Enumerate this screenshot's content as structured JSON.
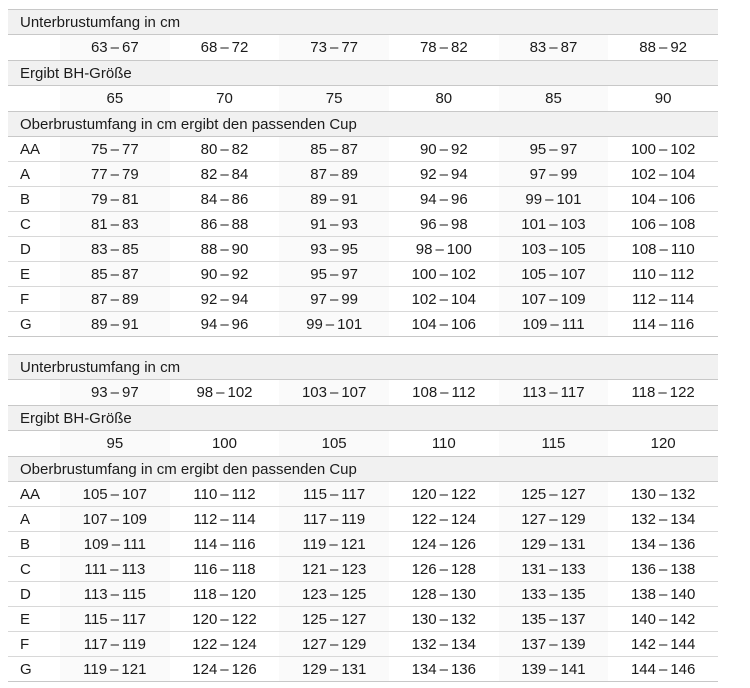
{
  "colors": {
    "header_band_bg": "#f1f1f1",
    "border_strong": "#c8c8c8",
    "border_light": "#d8d8d8",
    "column_tint": "#fafafa",
    "text": "#1b1b1b"
  },
  "tables": [
    {
      "underbust_header": "Unterbrustumfang in cm",
      "underbust_ranges": [
        "63 – 67",
        "68 – 72",
        "73 – 77",
        "78 – 82",
        "83 – 87",
        "88 – 92"
      ],
      "band_size_header": "Ergibt BH-Größe",
      "band_sizes": [
        "65",
        "70",
        "75",
        "80",
        "85",
        "90"
      ],
      "cup_header": "Oberbrustumfang in cm ergibt den passenden Cup",
      "cup_rows": [
        {
          "cup": "AA",
          "ranges": [
            "75 – 77",
            "80 – 82",
            "85 – 87",
            "90 – 92",
            "95 – 97",
            "100 – 102"
          ]
        },
        {
          "cup": "A",
          "ranges": [
            "77 – 79",
            "82 – 84",
            "87 – 89",
            "92 – 94",
            "97 – 99",
            "102 – 104"
          ]
        },
        {
          "cup": "B",
          "ranges": [
            "79 – 81",
            "84 – 86",
            "89 – 91",
            "94 – 96",
            "99 – 101",
            "104 – 106"
          ]
        },
        {
          "cup": "C",
          "ranges": [
            "81 – 83",
            "86 – 88",
            "91 – 93",
            "96 – 98",
            "101 – 103",
            "106 – 108"
          ]
        },
        {
          "cup": "D",
          "ranges": [
            "83 – 85",
            "88 – 90",
            "93 – 95",
            "98 – 100",
            "103 – 105",
            "108 – 110"
          ]
        },
        {
          "cup": "E",
          "ranges": [
            "85 – 87",
            "90 – 92",
            "95 – 97",
            "100 – 102",
            "105 – 107",
            "110 – 112"
          ]
        },
        {
          "cup": "F",
          "ranges": [
            "87 – 89",
            "92 – 94",
            "97 – 99",
            "102 – 104",
            "107 – 109",
            "112 – 114"
          ]
        },
        {
          "cup": "G",
          "ranges": [
            "89 – 91",
            "94 – 96",
            "99 – 101",
            "104 – 106",
            "109 – 111",
            "114 – 116"
          ]
        }
      ]
    },
    {
      "underbust_header": "Unterbrustumfang in cm",
      "underbust_ranges": [
        "93 – 97",
        "98 – 102",
        "103 – 107",
        "108 – 112",
        "113 – 117",
        "118 – 122"
      ],
      "band_size_header": "Ergibt BH-Größe",
      "band_sizes": [
        "95",
        "100",
        "105",
        "110",
        "115",
        "120"
      ],
      "cup_header": "Oberbrustumfang in cm ergibt den passenden Cup",
      "cup_rows": [
        {
          "cup": "AA",
          "ranges": [
            "105 – 107",
            "110 – 112",
            "115 – 117",
            "120 – 122",
            "125 – 127",
            "130 – 132"
          ]
        },
        {
          "cup": "A",
          "ranges": [
            "107 – 109",
            "112 – 114",
            "117 – 119",
            "122 – 124",
            "127 – 129",
            "132 – 134"
          ]
        },
        {
          "cup": "B",
          "ranges": [
            "109 – 111",
            "114 – 116",
            "119 – 121",
            "124 – 126",
            "129 – 131",
            "134 – 136"
          ]
        },
        {
          "cup": "C",
          "ranges": [
            "111 – 113",
            "116 – 118",
            "121 – 123",
            "126 – 128",
            "131 – 133",
            "136 – 138"
          ]
        },
        {
          "cup": "D",
          "ranges": [
            "113 – 115",
            "118 – 120",
            "123 – 125",
            "128 – 130",
            "133 – 135",
            "138 – 140"
          ]
        },
        {
          "cup": "E",
          "ranges": [
            "115 – 117",
            "120 – 122",
            "125 – 127",
            "130 – 132",
            "135 – 137",
            "140 – 142"
          ]
        },
        {
          "cup": "F",
          "ranges": [
            "117 – 119",
            "122 – 124",
            "127 – 129",
            "132 – 134",
            "137 – 139",
            "142 – 144"
          ]
        },
        {
          "cup": "G",
          "ranges": [
            "119 – 121",
            "124 – 126",
            "129 – 131",
            "134 – 136",
            "139 – 141",
            "144 – 146"
          ]
        }
      ]
    }
  ]
}
